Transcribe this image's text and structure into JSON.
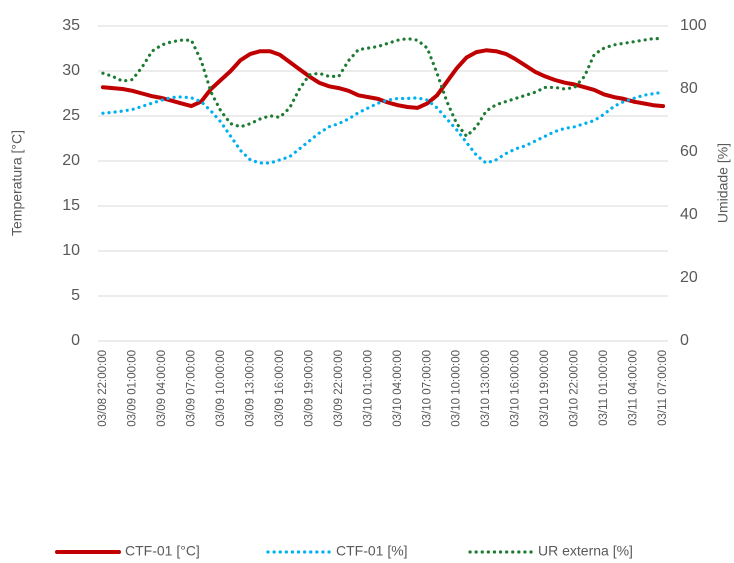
{
  "chart_data": {
    "type": "line",
    "categories": [
      "03/08 22:00:00",
      null,
      null,
      "03/09 01:00:00",
      null,
      null,
      "03/09 04:00:00",
      null,
      null,
      "03/09 07:00:00",
      null,
      null,
      "03/09 10:00:00",
      null,
      null,
      "03/09 13:00:00",
      null,
      null,
      "03/09 16:00:00",
      null,
      null,
      "03/09 19:00:00",
      null,
      null,
      "03/09 22:00:00",
      null,
      null,
      "03/10 01:00:00",
      null,
      null,
      "03/10 04:00:00",
      null,
      null,
      "03/10 07:00:00",
      null,
      null,
      "03/10 10:00:00",
      null,
      null,
      "03/10 13:00:00",
      null,
      null,
      "03/10 16:00:00",
      null,
      null,
      "03/10 19:00:00",
      null,
      null,
      "03/10 22:00:00",
      null,
      null,
      "03/11 01:00:00",
      null,
      null,
      "03/11 04:00:00",
      null,
      null,
      "03/11 07:00:00"
    ],
    "series": [
      {
        "name": "CTF-01 [°C]",
        "color": "#c00000",
        "line_style": "solid",
        "axis": "y",
        "values": [
          28.2,
          28.1,
          28.0,
          27.8,
          27.5,
          27.2,
          27.0,
          26.7,
          26.4,
          26.1,
          26.6,
          28.0,
          29.0,
          30.0,
          31.2,
          31.9,
          32.2,
          32.2,
          31.8,
          31.0,
          30.2,
          29.4,
          28.7,
          28.3,
          28.1,
          27.8,
          27.3,
          27.1,
          26.9,
          26.5,
          26.2,
          26.0,
          25.9,
          26.4,
          27.3,
          28.8,
          30.3,
          31.5,
          32.1,
          32.3,
          32.2,
          31.9,
          31.3,
          30.6,
          29.9,
          29.4,
          29.0,
          28.7,
          28.5,
          28.2,
          27.9,
          27.4,
          27.1,
          26.9,
          26.6,
          26.4,
          26.2,
          26.1
        ]
      },
      {
        "name": "CTF-01 [%]",
        "color": "#00b0f0",
        "line_style": "dotted",
        "axis": "y2",
        "values": [
          72.3,
          72.6,
          73,
          73.5,
          74.5,
          75.5,
          76.5,
          77.3,
          77.5,
          77.2,
          76,
          73,
          69.5,
          65,
          60.5,
          57.5,
          56.5,
          56.5,
          57.5,
          58.5,
          61,
          63.5,
          66,
          68,
          69,
          70.5,
          72.5,
          74,
          75.5,
          76.5,
          77,
          77,
          77.2,
          76.5,
          74,
          70.5,
          67,
          63,
          59,
          56.5,
          57.5,
          59.5,
          61,
          62,
          63.5,
          65,
          66.5,
          67.5,
          68,
          69,
          70,
          72,
          74.5,
          76,
          77,
          78,
          78.5,
          79
        ]
      },
      {
        "name": "UR externa [%]",
        "color": "#1e7b34",
        "line_style": "dotted",
        "axis": "y2",
        "values": [
          85,
          84,
          82.5,
          83,
          87,
          92,
          94,
          95,
          95.5,
          95.5,
          89,
          79,
          73,
          69,
          68,
          69,
          70.5,
          71.5,
          71,
          74,
          80,
          84.5,
          85,
          84,
          84,
          89,
          92.5,
          93,
          93.5,
          94.5,
          95.5,
          96,
          95.5,
          93,
          85,
          76,
          69,
          65,
          68,
          73,
          75,
          76,
          77,
          78,
          79,
          80.5,
          80.5,
          80,
          80.5,
          84,
          91,
          93,
          94,
          94.5,
          95,
          95.5,
          96,
          96
        ]
      }
    ],
    "ylabel": "Temperatura [°C]",
    "y2label": "Umidade [%]",
    "ylim": [
      0,
      35
    ],
    "yticks": [
      0,
      5,
      10,
      15,
      20,
      25,
      30,
      35
    ],
    "y2lim": [
      0,
      100
    ],
    "y2ticks": [
      0,
      20,
      40,
      60,
      80,
      100
    ],
    "grid": true,
    "legend": "bottom"
  }
}
